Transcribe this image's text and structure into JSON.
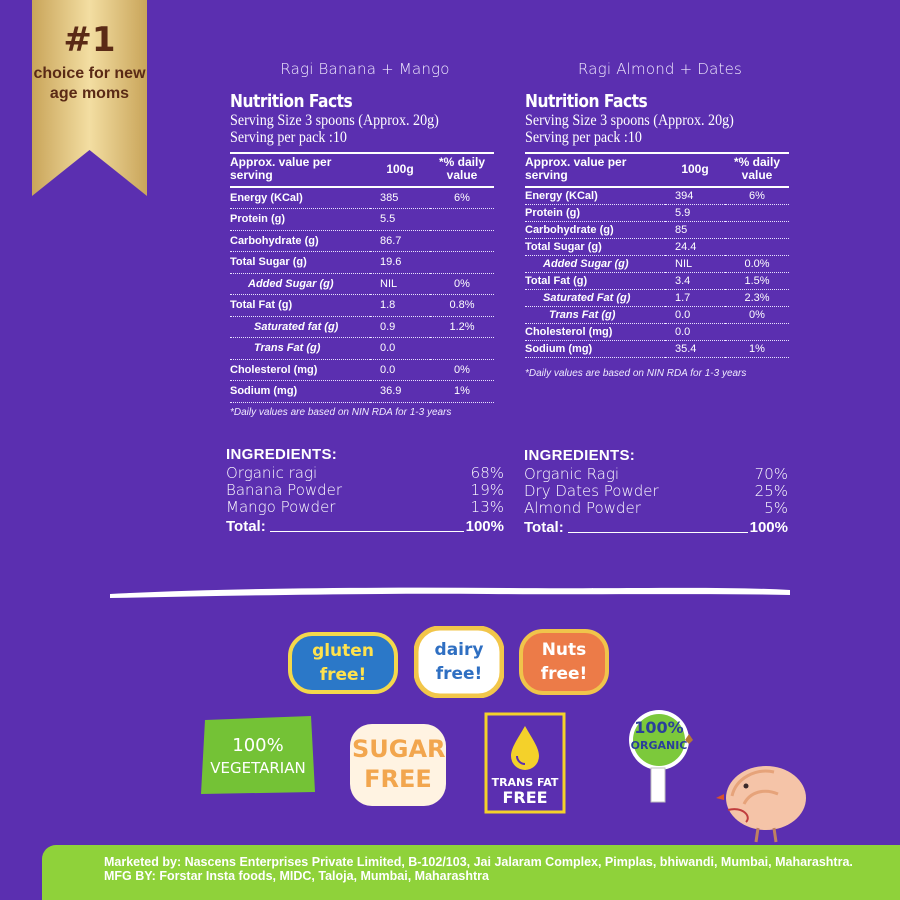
{
  "ribbon": {
    "rank": "#1",
    "text": "choice for new age moms"
  },
  "left": {
    "product": "Ragi Banana + Mango",
    "nf_title": "Nutrition Facts",
    "serving_size": "Serving Size 3 spoons (Approx. 20g)",
    "serving_pack": "Serving per pack :10",
    "headers": [
      "Approx. value per serving",
      "100g",
      "*% daily value"
    ],
    "rows": [
      {
        "name": "Energy (KCal)",
        "value": "385",
        "pct": "6%"
      },
      {
        "name": "Protein (g)",
        "value": "5.5",
        "pct": ""
      },
      {
        "name": "Carbohydrate (g)",
        "value": "86.7",
        "pct": ""
      },
      {
        "name": "Total Sugar (g)",
        "value": "19.6",
        "pct": ""
      },
      {
        "name": "Added Sugar (g)",
        "value": "NIL",
        "pct": "0%"
      },
      {
        "name": "Total Fat (g)",
        "value": "1.8",
        "pct": "0.8%"
      },
      {
        "name": "Saturated fat (g)",
        "value": "0.9",
        "pct": "1.2%"
      },
      {
        "name": "Trans Fat (g)",
        "value": "0.0",
        "pct": ""
      },
      {
        "name": "Cholesterol (mg)",
        "value": "0.0",
        "pct": "0%"
      },
      {
        "name": "Sodium (mg)",
        "value": "36.9",
        "pct": "1%"
      }
    ],
    "footnote": "*Daily values are based on NIN RDA for 1-3 years",
    "ingredients_title": "INGREDIENTS:",
    "ingredients": [
      {
        "name": "Organic ragi",
        "pct": "68%"
      },
      {
        "name": "Banana Powder",
        "pct": "19%"
      },
      {
        "name": "Mango Powder",
        "pct": "13%"
      }
    ],
    "total_label": "Total:",
    "total_pct": "100%"
  },
  "right": {
    "product": "Ragi Almond + Dates",
    "nf_title": "Nutrition Facts",
    "serving_size": "Serving Size 3 spoons (Approx. 20g)",
    "serving_pack": "Serving per pack :10",
    "headers": [
      "Approx. value per serving",
      "100g",
      "*% daily value"
    ],
    "rows": [
      {
        "name": "Energy (KCal)",
        "value": "394",
        "pct": "6%"
      },
      {
        "name": "Protein (g)",
        "value": "5.9",
        "pct": ""
      },
      {
        "name": "Carbohydrate (g)",
        "value": "85",
        "pct": ""
      },
      {
        "name": "Total Sugar (g)",
        "value": "24.4",
        "pct": ""
      },
      {
        "name": "Added Sugar (g)",
        "value": "NIL",
        "pct": "0.0%"
      },
      {
        "name": "Total Fat (g)",
        "value": "3.4",
        "pct": "1.5%"
      },
      {
        "name": "Saturated Fat (g)",
        "value": "1.7",
        "pct": "2.3%"
      },
      {
        "name": "Trans Fat (g)",
        "value": "0.0",
        "pct": "0%"
      },
      {
        "name": "Cholesterol (mg)",
        "value": "0.0",
        "pct": ""
      },
      {
        "name": "Sodium (mg)",
        "value": "35.4",
        "pct": "1%"
      }
    ],
    "footnote": "*Daily values are based on NIN RDA for 1-3 years",
    "ingredients_title": "INGREDIENTS:",
    "ingredients": [
      {
        "name": "Organic Ragi",
        "pct": "70%"
      },
      {
        "name": "Dry Dates Powder",
        "pct": "25%"
      },
      {
        "name": "Almond Powder",
        "pct": "5%"
      }
    ],
    "total_label": "Total:",
    "total_pct": "100%"
  },
  "badges": {
    "gluten": "gluten free!",
    "dairy": "dairy free!",
    "nuts": "Nuts free!",
    "veg_pct": "100%",
    "veg_text": "VEGETARIAN",
    "sugar": "SUGAR FREE",
    "trans_line1": "TRANS FAT",
    "trans_line2": "FREE",
    "organic_pct": "100%",
    "organic_text": "ORGANIC"
  },
  "colors": {
    "background": "#5b2fb0",
    "footer": "#8fd23a",
    "ribbon_gold": "#e8cc84"
  },
  "footer": {
    "text": "Marketed by: Nascens Enterprises Private Limited, B-102/103, Jai Jalaram Complex, Pimplas, bhiwandi, Mumbai, Maharashtra.   MFG BY: Forstar Insta foods, MIDC, Taloja, Mumbai, Maharashtra"
  }
}
